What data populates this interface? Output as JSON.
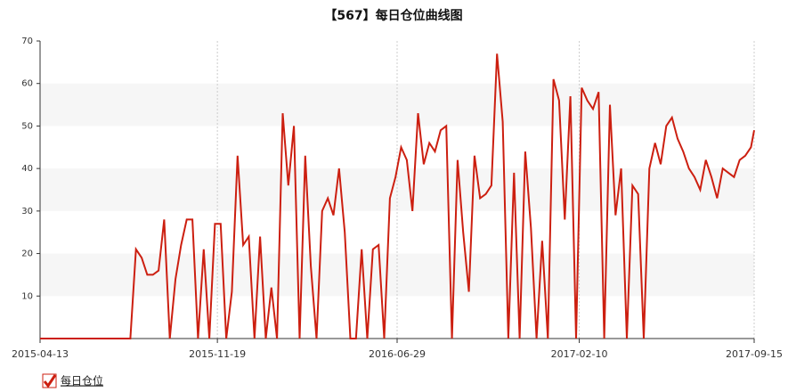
{
  "chart_data": {
    "type": "line",
    "title": "【567】每日仓位曲线图",
    "x": [
      "2015-04-13",
      "2015-08-03",
      "2015-08-10",
      "2015-08-17",
      "2015-08-24",
      "2015-08-31",
      "2015-09-07",
      "2015-09-14",
      "2015-09-21",
      "2015-09-28",
      "2015-10-05",
      "2015-10-12",
      "2015-10-19",
      "2015-10-26",
      "2015-11-02",
      "2015-11-09",
      "2015-11-16",
      "2015-11-23",
      "2015-11-30",
      "2015-12-07",
      "2015-12-14",
      "2015-12-21",
      "2015-12-28",
      "2016-01-04",
      "2016-01-11",
      "2016-01-18",
      "2016-01-25",
      "2016-02-01",
      "2016-02-08",
      "2016-02-15",
      "2016-02-22",
      "2016-02-29",
      "2016-03-07",
      "2016-03-14",
      "2016-03-21",
      "2016-03-28",
      "2016-04-04",
      "2016-04-11",
      "2016-04-18",
      "2016-04-25",
      "2016-05-02",
      "2016-05-09",
      "2016-05-16",
      "2016-05-23",
      "2016-05-30",
      "2016-06-06",
      "2016-06-13",
      "2016-06-20",
      "2016-06-27",
      "2016-07-04",
      "2016-07-11",
      "2016-07-18",
      "2016-07-25",
      "2016-08-01",
      "2016-08-08",
      "2016-08-15",
      "2016-08-22",
      "2016-08-29",
      "2016-09-05",
      "2016-09-12",
      "2016-09-19",
      "2016-09-26",
      "2016-10-03",
      "2016-10-10",
      "2016-10-17",
      "2016-10-24",
      "2016-10-31",
      "2016-11-07",
      "2016-11-14",
      "2016-11-21",
      "2016-11-28",
      "2016-12-05",
      "2016-12-12",
      "2016-12-19",
      "2016-12-26",
      "2017-01-02",
      "2017-01-09",
      "2017-01-16",
      "2017-01-23",
      "2017-01-30",
      "2017-02-06",
      "2017-02-13",
      "2017-02-20",
      "2017-02-27",
      "2017-03-06",
      "2017-03-13",
      "2017-03-20",
      "2017-03-27",
      "2017-04-03",
      "2017-04-10",
      "2017-04-17",
      "2017-04-24",
      "2017-05-01",
      "2017-05-08",
      "2017-05-15",
      "2017-05-22",
      "2017-05-29",
      "2017-06-05",
      "2017-06-12",
      "2017-06-19",
      "2017-06-26",
      "2017-07-03",
      "2017-07-10",
      "2017-07-17",
      "2017-07-24",
      "2017-07-31",
      "2017-08-07",
      "2017-08-14",
      "2017-08-21",
      "2017-08-28",
      "2017-09-04",
      "2017-09-11",
      "2017-09-15"
    ],
    "series": [
      {
        "name": "每日仓位",
        "color": "#cc1f10",
        "values": [
          0,
          0,
          21,
          19,
          15,
          15,
          16,
          28,
          0,
          14,
          22,
          28,
          28,
          0,
          21,
          0,
          27,
          27,
          0,
          11,
          43,
          22,
          24,
          0,
          24,
          0,
          12,
          0,
          53,
          36,
          50,
          0,
          43,
          17,
          0,
          30,
          33,
          29,
          40,
          25,
          0,
          0,
          21,
          0,
          21,
          22,
          0,
          33,
          38,
          45,
          42,
          30,
          53,
          41,
          46,
          44,
          49,
          50,
          0,
          42,
          25,
          11,
          43,
          33,
          34,
          36,
          67,
          51,
          0,
          39,
          0,
          44,
          26,
          0,
          23,
          0,
          61,
          56,
          28,
          57,
          0,
          59,
          56,
          54,
          58,
          0,
          55,
          29,
          40,
          0,
          36,
          34,
          0,
          40,
          46,
          41,
          50,
          52,
          47,
          44,
          40,
          38,
          35,
          42,
          38,
          33,
          40,
          39,
          38,
          42,
          43,
          45,
          49
        ]
      }
    ],
    "xlim": [
      "2015-04-13",
      "2017-09-15"
    ],
    "xticks": [
      "2015-04-13",
      "2015-11-19",
      "2016-06-29",
      "2017-02-10",
      "2017-09-15"
    ],
    "ylim": [
      0,
      70
    ],
    "yticks": [
      10,
      20,
      30,
      40,
      50,
      60,
      70
    ],
    "legend": "bottom-left",
    "grid": true
  }
}
